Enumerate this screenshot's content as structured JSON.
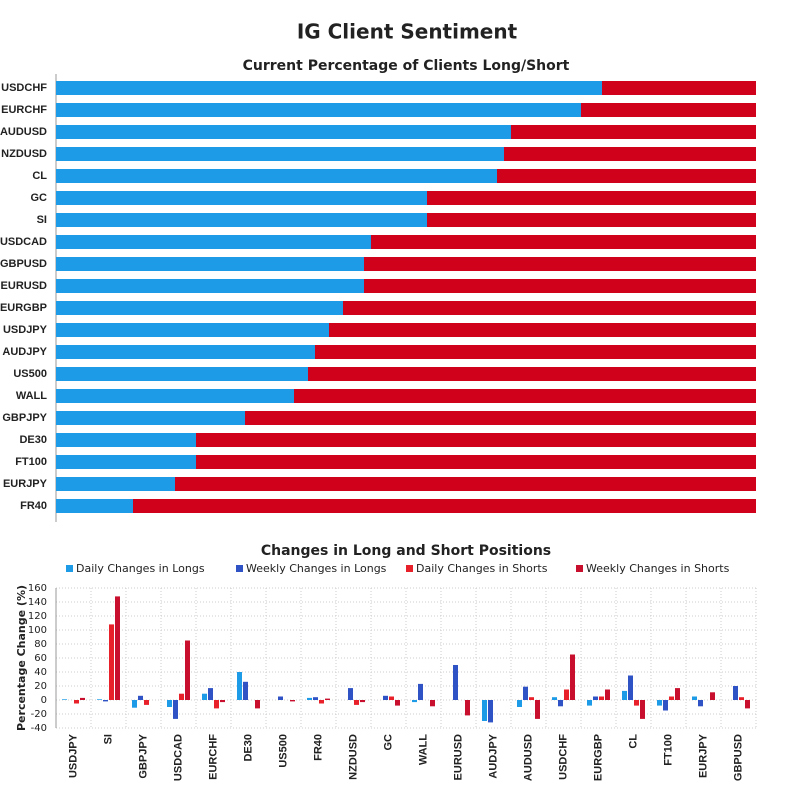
{
  "title": "IG Client Sentiment",
  "chart_data": [
    {
      "type": "bar",
      "orientation": "horizontal",
      "stacked": true,
      "title": "Current Percentage of Clients Long/Short",
      "categories": [
        "USDCHF",
        "EURCHF",
        "AUDUSD",
        "NZDUSD",
        "CL",
        "GC",
        "SI",
        "USDCAD",
        "GBPUSD",
        "EURUSD",
        "EURGBP",
        "USDJPY",
        "AUDJPY",
        "US500",
        "WALL",
        "GBPJPY",
        "DE30",
        "FT100",
        "EURJPY",
        "FR40"
      ],
      "xlim": [
        0,
        100
      ],
      "series": [
        {
          "name": "Long",
          "color": "#1e9be6",
          "values": [
            78,
            75,
            65,
            64,
            63,
            53,
            53,
            45,
            44,
            44,
            41,
            39,
            37,
            36,
            34,
            27,
            20,
            20,
            17,
            11
          ]
        },
        {
          "name": "Short",
          "color": "#d0021b",
          "values": [
            22,
            25,
            35,
            36,
            37,
            47,
            47,
            55,
            56,
            56,
            59,
            61,
            63,
            64,
            66,
            73,
            80,
            80,
            83,
            89
          ]
        }
      ]
    },
    {
      "type": "bar",
      "orientation": "vertical",
      "stacked": false,
      "title": "Changes in Long and Short Positions",
      "y_label": "Percentage Change (%)",
      "categories": [
        "USDJPY",
        "SI",
        "GBPJPY",
        "USDCAD",
        "EURCHF",
        "DE30",
        "US500",
        "FR40",
        "NZDUSD",
        "GC",
        "WALL",
        "EURUSD",
        "AUDJPY",
        "AUDUSD",
        "USDCHF",
        "EURGBP",
        "CL",
        "FT100",
        "EURJPY",
        "GBPUSD"
      ],
      "ylim": [
        -40,
        160
      ],
      "yticks": [
        -40,
        -20,
        0,
        20,
        40,
        60,
        80,
        100,
        120,
        140,
        160
      ],
      "grid": true,
      "series": [
        {
          "name": "Daily Changes in Longs",
          "color": "#1e9be6",
          "values": [
            1,
            1,
            -11,
            -10,
            9,
            40,
            0,
            3,
            0,
            0,
            -3,
            0,
            -30,
            -10,
            4,
            -8,
            13,
            -8,
            5,
            0
          ]
        },
        {
          "name": "Weekly Changes in Longs",
          "color": "#2f52c4",
          "values": [
            0,
            -2,
            6,
            -27,
            17,
            26,
            5,
            4,
            17,
            6,
            23,
            50,
            -32,
            19,
            -9,
            5,
            35,
            -15,
            -9,
            20
          ]
        },
        {
          "name": "Daily Changes in Shorts",
          "color": "#e8202a",
          "values": [
            -5,
            108,
            -7,
            9,
            -12,
            0,
            0,
            -5,
            -7,
            5,
            0,
            0,
            0,
            4,
            15,
            5,
            -8,
            5,
            0,
            4
          ]
        },
        {
          "name": "Weekly Changes in Shorts",
          "color": "#c8102e",
          "values": [
            3,
            148,
            0,
            85,
            -3,
            -12,
            -2,
            2,
            -3,
            -8,
            -9,
            -22,
            0,
            -27,
            65,
            15,
            -27,
            17,
            11,
            -12
          ]
        }
      ]
    }
  ]
}
